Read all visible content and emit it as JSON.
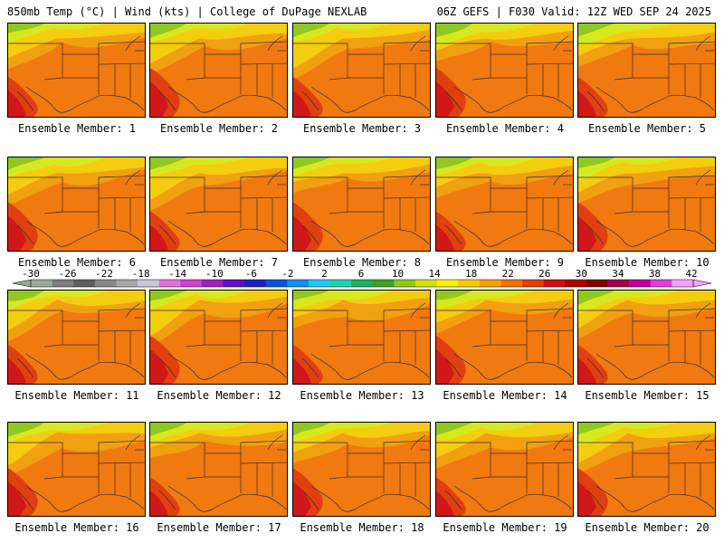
{
  "header": {
    "left": "850mb Temp (°C) | Wind (kts) | College of DuPage NEXLAB",
    "right": "06Z GEFS | F030 Valid: 12Z WED SEP 24 2025"
  },
  "panels": [
    {
      "label": "Ensemble Member: 1"
    },
    {
      "label": "Ensemble Member: 2"
    },
    {
      "label": "Ensemble Member: 3"
    },
    {
      "label": "Ensemble Member: 4"
    },
    {
      "label": "Ensemble Member: 5"
    },
    {
      "label": "Ensemble Member: 6"
    },
    {
      "label": "Ensemble Member: 7"
    },
    {
      "label": "Ensemble Member: 8"
    },
    {
      "label": "Ensemble Member: 9"
    },
    {
      "label": "Ensemble Member: 10"
    },
    {
      "label": "Ensemble Member: 11"
    },
    {
      "label": "Ensemble Member: 12"
    },
    {
      "label": "Ensemble Member: 13"
    },
    {
      "label": "Ensemble Member: 14"
    },
    {
      "label": "Ensemble Member: 15"
    },
    {
      "label": "Ensemble Member: 16"
    },
    {
      "label": "Ensemble Member: 17"
    },
    {
      "label": "Ensemble Member: 18"
    },
    {
      "label": "Ensemble Member: 19"
    },
    {
      "label": "Ensemble Member: 20"
    }
  ],
  "colorbar": {
    "tick_labels": [
      "-30",
      "-26",
      "-22",
      "-18",
      "-14",
      "-10",
      "-6",
      "-2",
      "2",
      "6",
      "10",
      "14",
      "18",
      "22",
      "26",
      "30",
      "34",
      "38",
      "42"
    ],
    "colors": [
      "#9aa89a",
      "#7d7d7d",
      "#5f5f5f",
      "#888888",
      "#a8a8a8",
      "#c8c8d8",
      "#e070e0",
      "#d040d0",
      "#a020c0",
      "#6010c0",
      "#2020c0",
      "#1050e0",
      "#1090f0",
      "#20c8f0",
      "#20d0b0",
      "#20b060",
      "#40a020",
      "#90c820",
      "#d0e010",
      "#f8f000",
      "#f8c800",
      "#f8a000",
      "#f07000",
      "#e04000",
      "#d01010",
      "#b00000",
      "#800000",
      "#a00050",
      "#c000a0",
      "#e040e0",
      "#f8a0f8"
    ]
  }
}
